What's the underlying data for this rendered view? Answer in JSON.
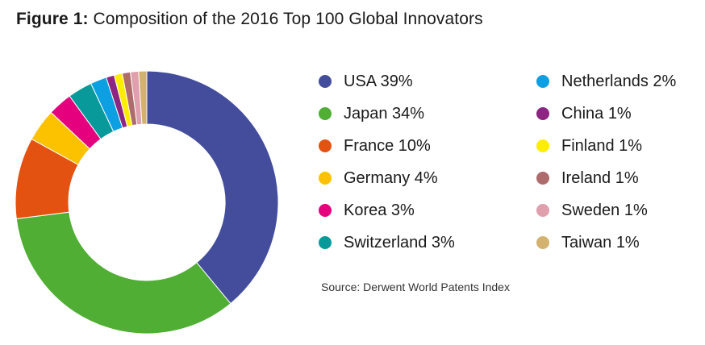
{
  "title": {
    "prefix": "Figure 1:",
    "text": "Composition of the 2016 Top 100 Global Innovators"
  },
  "source": "Source: Derwent World Patents Index",
  "chart_data": {
    "type": "pie",
    "variant": "donut",
    "title": "Composition of the 2016 Top 100 Global Innovators",
    "unit": "%",
    "legend_position": "right",
    "categories": [
      "USA",
      "Japan",
      "France",
      "Germany",
      "Korea",
      "Switzerland",
      "Netherlands",
      "China",
      "Finland",
      "Ireland",
      "Sweden",
      "Taiwan"
    ],
    "values": [
      39,
      34,
      10,
      4,
      3,
      3,
      2,
      1,
      1,
      1,
      1,
      1
    ],
    "legend_labels": [
      "USA 39%",
      "Japan 34%",
      "France 10%",
      "Germany 4%",
      "Korea 3%",
      "Switzerland 3%",
      "Netherlands 2%",
      "China 1%",
      "Finland 1%",
      "Ireland 1%",
      "Sweden 1%",
      "Taiwan 1%"
    ],
    "colors": [
      "#434d9b",
      "#4fae33",
      "#e35210",
      "#fcc200",
      "#e5007d",
      "#089a9a",
      "#0c9fe2",
      "#8d2582",
      "#ffed00",
      "#ad6b6b",
      "#e09fad",
      "#d3b26f"
    ]
  }
}
